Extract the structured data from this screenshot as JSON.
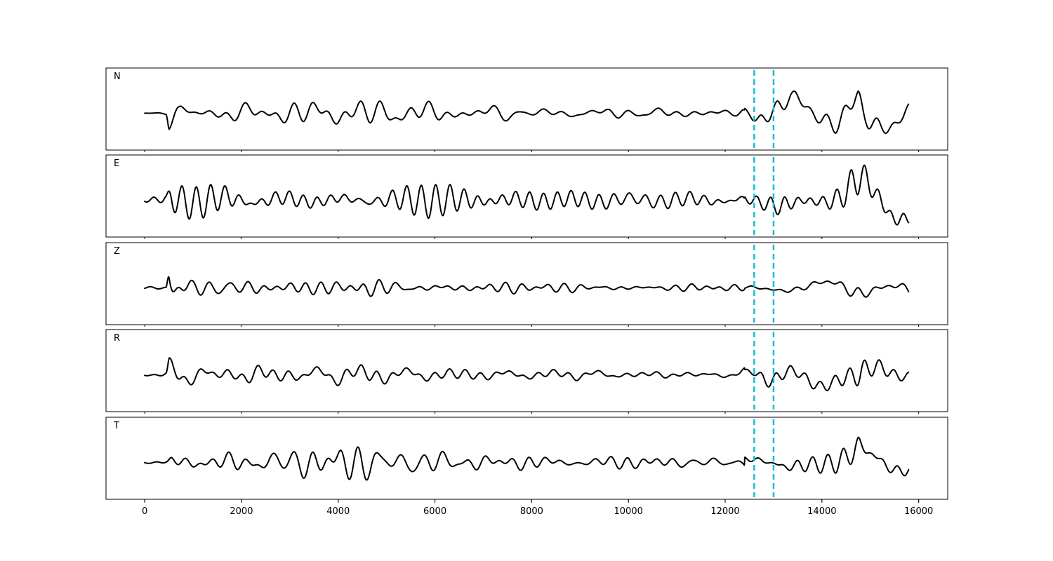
{
  "chart_data": {
    "type": "line",
    "title": "",
    "xlabel": "",
    "ylabel": "",
    "xlim": [
      -800,
      16600
    ],
    "x_ticks": [
      0,
      2000,
      4000,
      6000,
      8000,
      10000,
      12000,
      14000,
      16000
    ],
    "x_tick_labels": [
      "0",
      "2000",
      "4000",
      "6000",
      "8000",
      "10000",
      "12000",
      "14000",
      "16000"
    ],
    "marker_lines": {
      "x": [
        12600,
        13000
      ],
      "color": "#17becf",
      "style": "dashed"
    },
    "trace_color": "#000000",
    "x_range": [
      0,
      15800
    ],
    "grid": false,
    "legend": "none",
    "panels": [
      {
        "label": "N",
        "amplitude_norm": 1.0,
        "envelope": [
          [
            0,
            0.03
          ],
          [
            450,
            0.04
          ],
          [
            500,
            0.38
          ],
          [
            700,
            0.22
          ],
          [
            1500,
            0.22
          ],
          [
            3500,
            0.32
          ],
          [
            5000,
            0.33
          ],
          [
            6500,
            0.25
          ],
          [
            8000,
            0.15
          ],
          [
            9500,
            0.15
          ],
          [
            11000,
            0.1
          ],
          [
            12200,
            0.1
          ],
          [
            12500,
            0.22
          ],
          [
            12800,
            0.6
          ],
          [
            13100,
            0.62
          ],
          [
            13400,
            0.4
          ],
          [
            13800,
            0.35
          ],
          [
            14200,
            0.55
          ],
          [
            14600,
            0.8
          ],
          [
            14750,
            1.0
          ],
          [
            14900,
            0.6
          ],
          [
            15300,
            0.45
          ],
          [
            15800,
            0.3
          ]
        ]
      },
      {
        "label": "E",
        "amplitude_norm": 1.0,
        "envelope": [
          [
            0,
            0.08
          ],
          [
            450,
            0.12
          ],
          [
            550,
            0.35
          ],
          [
            1000,
            0.4
          ],
          [
            2000,
            0.5
          ],
          [
            3000,
            0.45
          ],
          [
            4500,
            0.45
          ],
          [
            5500,
            0.45
          ],
          [
            7000,
            0.4
          ],
          [
            8500,
            0.35
          ],
          [
            9800,
            0.38
          ],
          [
            10500,
            0.3
          ],
          [
            12200,
            0.2
          ],
          [
            12700,
            0.3
          ],
          [
            13000,
            0.45
          ],
          [
            13200,
            0.55
          ],
          [
            13600,
            0.4
          ],
          [
            14100,
            0.45
          ],
          [
            14500,
            0.7
          ],
          [
            14750,
            1.0
          ],
          [
            15000,
            0.75
          ],
          [
            15800,
            0.55
          ]
        ]
      },
      {
        "label": "Z",
        "amplitude_norm": 1.0,
        "envelope": [
          [
            0,
            0.03
          ],
          [
            450,
            0.03
          ],
          [
            500,
            1.0
          ],
          [
            560,
            0.7
          ],
          [
            700,
            0.4
          ],
          [
            1000,
            0.22
          ],
          [
            2000,
            0.2
          ],
          [
            4000,
            0.16
          ],
          [
            4600,
            0.25
          ],
          [
            5000,
            0.2
          ],
          [
            7000,
            0.13
          ],
          [
            9000,
            0.1
          ],
          [
            11000,
            0.1
          ],
          [
            12500,
            0.08
          ],
          [
            13500,
            0.12
          ],
          [
            14200,
            0.22
          ],
          [
            14700,
            0.35
          ],
          [
            15200,
            0.18
          ],
          [
            15800,
            0.25
          ]
        ]
      },
      {
        "label": "R",
        "amplitude_norm": 1.0,
        "envelope": [
          [
            0,
            0.03
          ],
          [
            450,
            0.06
          ],
          [
            500,
            0.32
          ],
          [
            800,
            0.28
          ],
          [
            2000,
            0.25
          ],
          [
            3500,
            0.25
          ],
          [
            5000,
            0.28
          ],
          [
            6500,
            0.2
          ],
          [
            8000,
            0.15
          ],
          [
            9500,
            0.12
          ],
          [
            11000,
            0.08
          ],
          [
            12200,
            0.08
          ],
          [
            12600,
            0.2
          ],
          [
            12800,
            0.45
          ],
          [
            13100,
            0.5
          ],
          [
            13500,
            0.35
          ],
          [
            14200,
            0.45
          ],
          [
            14600,
            0.7
          ],
          [
            14800,
            1.0
          ],
          [
            15000,
            0.7
          ],
          [
            15300,
            0.5
          ],
          [
            15800,
            0.25
          ]
        ]
      },
      {
        "label": "T",
        "amplitude_norm": 1.0,
        "envelope": [
          [
            0,
            0.05
          ],
          [
            450,
            0.07
          ],
          [
            550,
            0.25
          ],
          [
            1500,
            0.25
          ],
          [
            2500,
            0.35
          ],
          [
            3500,
            0.35
          ],
          [
            4800,
            0.4
          ],
          [
            6000,
            0.3
          ],
          [
            7500,
            0.22
          ],
          [
            9500,
            0.2
          ],
          [
            11000,
            0.15
          ],
          [
            12200,
            0.12
          ],
          [
            12600,
            0.18
          ],
          [
            13000,
            0.22
          ],
          [
            13200,
            0.45
          ],
          [
            13800,
            0.4
          ],
          [
            14200,
            0.5
          ],
          [
            14600,
            0.75
          ],
          [
            14750,
            1.0
          ],
          [
            15000,
            0.6
          ],
          [
            15500,
            0.4
          ],
          [
            15800,
            0.25
          ]
        ]
      }
    ]
  }
}
